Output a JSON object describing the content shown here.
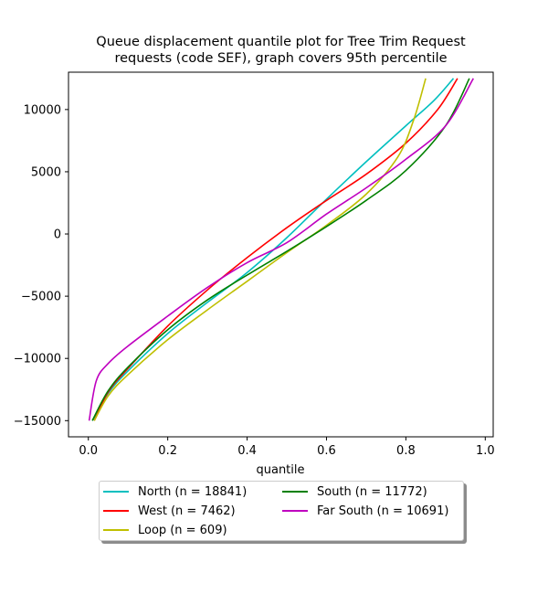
{
  "chart_data": {
    "type": "line",
    "title_line1": "Queue displacement quantile plot for Tree Trim Request",
    "title_line2": "requests (code SEF), graph covers 95th percentile",
    "xlabel": "quantile",
    "ylabel": "",
    "xlim": [
      -0.05,
      1.02
    ],
    "ylim": [
      -16300,
      13000
    ],
    "x_ticks": [
      0.0,
      0.2,
      0.4,
      0.6,
      0.8,
      1.0
    ],
    "x_tick_labels": [
      "0.0",
      "0.2",
      "0.4",
      "0.6",
      "0.8",
      "1.0"
    ],
    "y_ticks": [
      -15000,
      -10000,
      -5000,
      0,
      5000,
      10000
    ],
    "y_tick_labels": [
      "−15000",
      "−10000",
      "−5000",
      "0",
      "5000",
      "10000"
    ],
    "grid": false,
    "legend_placement": "below plot, two columns",
    "series": [
      {
        "name": "North",
        "n_label": "n = 18841",
        "color": "#00bfbf",
        "x": [
          0.01,
          0.05,
          0.1,
          0.2,
          0.3,
          0.4,
          0.5,
          0.6,
          0.7,
          0.8,
          0.87,
          0.92
        ],
        "y": [
          -15000,
          -12800,
          -11000,
          -8000,
          -5500,
          -3100,
          -300,
          2800,
          5800,
          8700,
          10700,
          12500
        ]
      },
      {
        "name": "West",
        "n_label": "n = 7462",
        "color": "#ff0000",
        "x": [
          0.015,
          0.05,
          0.1,
          0.2,
          0.3,
          0.4,
          0.5,
          0.6,
          0.7,
          0.8,
          0.88,
          0.93
        ],
        "y": [
          -15000,
          -12700,
          -10800,
          -7400,
          -4500,
          -1900,
          500,
          2700,
          4800,
          7300,
          10000,
          12500
        ]
      },
      {
        "name": "Loop",
        "n_label": "n = 609",
        "color": "#bfbf00",
        "x": [
          0.015,
          0.05,
          0.1,
          0.2,
          0.3,
          0.4,
          0.5,
          0.6,
          0.7,
          0.78,
          0.82,
          0.85
        ],
        "y": [
          -15000,
          -13000,
          -11300,
          -8500,
          -6100,
          -3800,
          -1500,
          700,
          3200,
          6200,
          9200,
          12500
        ]
      },
      {
        "name": "South",
        "n_label": "n = 11772",
        "color": "#008000",
        "x": [
          0.01,
          0.05,
          0.1,
          0.2,
          0.3,
          0.4,
          0.5,
          0.6,
          0.7,
          0.8,
          0.9,
          0.96
        ],
        "y": [
          -15000,
          -12600,
          -10700,
          -7700,
          -5300,
          -3300,
          -1400,
          600,
          2700,
          5100,
          8700,
          12500
        ]
      },
      {
        "name": "Far South",
        "n_label": "n = 10691",
        "color": "#bf00bf",
        "x": [
          0.002,
          0.02,
          0.05,
          0.1,
          0.2,
          0.3,
          0.4,
          0.5,
          0.6,
          0.7,
          0.8,
          0.9,
          0.97
        ],
        "y": [
          -15000,
          -11800,
          -10400,
          -9000,
          -6600,
          -4300,
          -2300,
          -700,
          1600,
          3700,
          6000,
          8700,
          12500
        ]
      }
    ]
  }
}
